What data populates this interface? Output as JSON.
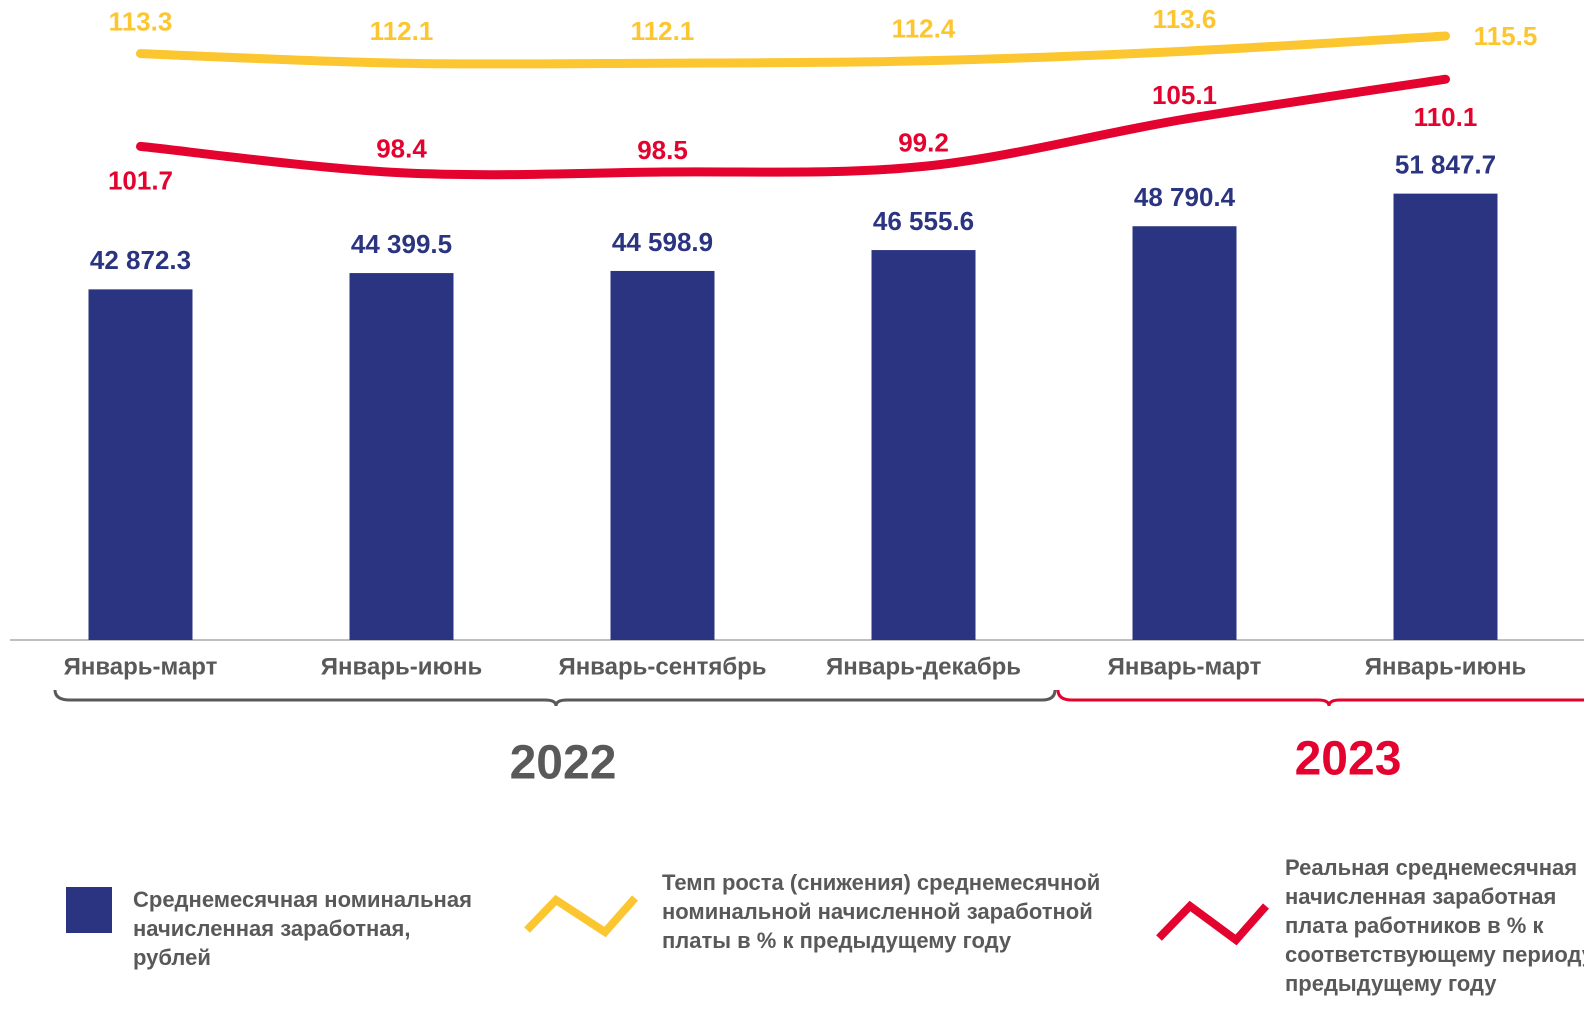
{
  "chart_data": {
    "type": "bar",
    "categories": [
      "Январь-март",
      "Январь-июнь",
      "Январь-сентябрь",
      "Январь-декабрь",
      "Январь-март",
      "Январь-июнь"
    ],
    "ylim": [
      10000,
      70000
    ],
    "y2lim": [
      40,
      120
    ],
    "series": [
      {
        "name": "Среднемесячная номинальная начисленная заработная, рублей",
        "type": "bar",
        "color": "#2b3480",
        "values": [
          42872.3,
          44399.5,
          44598.9,
          46555.6,
          48790.4,
          51847.7
        ],
        "value_labels": [
          "42 872.3",
          "44 399.5",
          "44 598.9",
          "46 555.6",
          "48 790.4",
          "51 847.7"
        ]
      },
      {
        "name": "Темп роста (снижения) среднемесячной номинальной начисленной заработной платы в % к предыдущему году",
        "type": "line",
        "axis": "y2",
        "color": "#fcc630",
        "values": [
          113.3,
          112.1,
          112.1,
          112.4,
          113.6,
          115.5
        ]
      },
      {
        "name": "Реальная среднемесячная начисленная заработная плата работников в % к соответствующему периоду предыдущему году",
        "type": "line",
        "axis": "y2",
        "color": "#e4032e",
        "values": [
          101.7,
          98.4,
          98.5,
          99.2,
          105.1,
          110.1
        ]
      }
    ],
    "groups": [
      {
        "label": "2022",
        "color": "#595959"
      },
      {
        "label": "2023",
        "color": "#e4032e"
      }
    ]
  }
}
